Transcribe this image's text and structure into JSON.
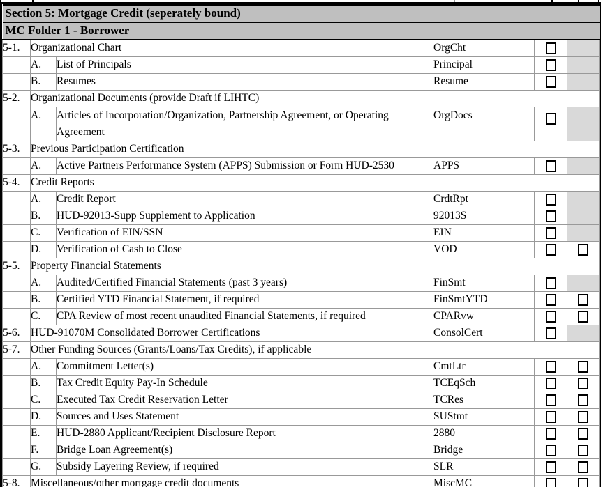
{
  "table": {
    "section_header": "Section 5: Mortgage Credit (seperately bound)",
    "folder_header": "MC Folder 1 - Borrower",
    "columns": [
      "item-number",
      "item-letter",
      "description",
      "code",
      "checkbox-1",
      "checkbox-2"
    ],
    "colors": {
      "header_bg": "#bfbfbf",
      "shaded_cell_bg": "#d9d9d9",
      "grid_line": "#999999",
      "border": "#000000"
    },
    "rows": [
      {
        "type": "section-item",
        "num": "5-1.",
        "desc": "Organizational Chart",
        "code": "OrgCht",
        "checks": [
          "unchecked"
        ]
      },
      {
        "type": "item",
        "letter": "A.",
        "desc": "List of Principals",
        "code": "Principal",
        "checks": [
          "unchecked"
        ]
      },
      {
        "type": "item",
        "letter": "B.",
        "desc": "Resumes",
        "code": "Resume",
        "checks": [
          "unchecked"
        ]
      },
      {
        "type": "section",
        "num": "5-2.",
        "desc": "Organizational Documents (provide Draft if LIHTC)"
      },
      {
        "type": "item",
        "letter": "A.",
        "desc": "Articles of Incorporation/Organization, Partnership Agreement, or Operating Agreement",
        "code": "OrgDocs",
        "checks": [
          "unchecked"
        ],
        "tall": true
      },
      {
        "type": "section",
        "num": "5-3.",
        "desc": "Previous Participation Certification"
      },
      {
        "type": "item",
        "letter": "A.",
        "desc": "Active Partners Performance System (APPS) Submission or Form HUD-2530",
        "code": "APPS",
        "checks": [
          "unchecked"
        ]
      },
      {
        "type": "section",
        "num": "5-4.",
        "desc": "Credit Reports"
      },
      {
        "type": "item",
        "letter": "A.",
        "desc": "Credit Report",
        "code": "CrdtRpt",
        "checks": [
          "unchecked"
        ]
      },
      {
        "type": "item",
        "letter": "B.",
        "desc": "HUD-92013-Supp Supplement to Application",
        "code": "92013S",
        "checks": [
          "unchecked"
        ]
      },
      {
        "type": "item",
        "letter": "C.",
        "desc": "Verification of EIN/SSN",
        "code": "EIN",
        "checks": [
          "unchecked"
        ]
      },
      {
        "type": "item",
        "letter": "D.",
        "desc": "Verification of Cash to Close",
        "code": "VOD",
        "checks": [
          "unchecked",
          "unchecked"
        ]
      },
      {
        "type": "section",
        "num": "5-5.",
        "desc": "Property Financial Statements"
      },
      {
        "type": "item",
        "letter": "A.",
        "desc": "Audited/Certified Financial Statements (past 3 years)",
        "code": "FinSmt",
        "checks": [
          "unchecked"
        ]
      },
      {
        "type": "item",
        "letter": "B.",
        "desc": "Certified YTD Financial Statement, if required",
        "code": "FinSmtYTD",
        "checks": [
          "unchecked",
          "unchecked"
        ]
      },
      {
        "type": "item",
        "letter": "C.",
        "desc": "CPA Review of most recent unaudited Financial Statements, if required",
        "code": "CPARvw",
        "checks": [
          "unchecked",
          "unchecked"
        ]
      },
      {
        "type": "section-item",
        "num": "5-6.",
        "desc": "HUD-91070M Consolidated Borrower Certifications",
        "code": "ConsolCert",
        "checks": [
          "unchecked"
        ]
      },
      {
        "type": "section",
        "num": "5-7.",
        "desc": "Other Funding Sources (Grants/Loans/Tax Credits), if applicable"
      },
      {
        "type": "item",
        "letter": "A.",
        "desc": "Commitment Letter(s)",
        "code": "CmtLtr",
        "checks": [
          "unchecked",
          "unchecked"
        ]
      },
      {
        "type": "item",
        "letter": "B.",
        "desc": "Tax Credit Equity Pay-In Schedule",
        "code": "TCEqSch",
        "checks": [
          "unchecked",
          "unchecked"
        ]
      },
      {
        "type": "item",
        "letter": "C.",
        "desc": "Executed Tax Credit Reservation Letter",
        "code": "TCRes",
        "checks": [
          "unchecked",
          "unchecked"
        ]
      },
      {
        "type": "item",
        "letter": "D.",
        "desc": "Sources and Uses Statement",
        "code": "SUStmt",
        "checks": [
          "unchecked",
          "unchecked"
        ]
      },
      {
        "type": "item",
        "letter": "E.",
        "desc": "HUD-2880 Applicant/Recipient Disclosure Report",
        "code": "2880",
        "checks": [
          "unchecked",
          "unchecked"
        ]
      },
      {
        "type": "item",
        "letter": "F.",
        "desc": "Bridge Loan Agreement(s)",
        "code": "Bridge",
        "checks": [
          "unchecked",
          "unchecked"
        ]
      },
      {
        "type": "item",
        "letter": "G.",
        "desc": "Subsidy Layering Review, if required",
        "code": "SLR",
        "checks": [
          "unchecked",
          "unchecked"
        ]
      },
      {
        "type": "section-item",
        "num": "5-8.",
        "desc": "Miscellaneous/other mortgage credit documents",
        "code": "MiscMC",
        "checks": [
          "unchecked",
          "unchecked"
        ]
      }
    ]
  }
}
